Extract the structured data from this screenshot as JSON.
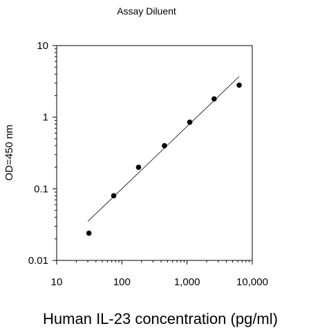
{
  "chart_data": {
    "type": "scatter",
    "title": "Assay Diluent",
    "xlabel": "Human IL-23 concentration (pg/ml)",
    "ylabel": "OD=450 nm",
    "xscale": "log",
    "yscale": "log",
    "xlim": [
      10,
      10000
    ],
    "ylim": [
      0.01,
      10
    ],
    "xticks": [
      10,
      100,
      1000,
      10000
    ],
    "xtick_labels": [
      "10",
      "100",
      "1,000",
      "10,000"
    ],
    "yticks": [
      0.01,
      0.1,
      1,
      10
    ],
    "ytick_labels": [
      "0.01",
      "0.1",
      "1",
      "10"
    ],
    "grid": false,
    "legend": "none",
    "series": [
      {
        "x": [
          31.25,
          75,
          180,
          450,
          1100,
          2600,
          6300
        ],
        "y": [
          0.024,
          0.08,
          0.2,
          0.4,
          0.85,
          1.8,
          2.8
        ],
        "marker": "circle",
        "color": "#000000"
      }
    ],
    "fit_line": {
      "x": [
        30,
        6300
      ],
      "y": [
        0.035,
        3.7
      ],
      "color": "#000000"
    }
  }
}
